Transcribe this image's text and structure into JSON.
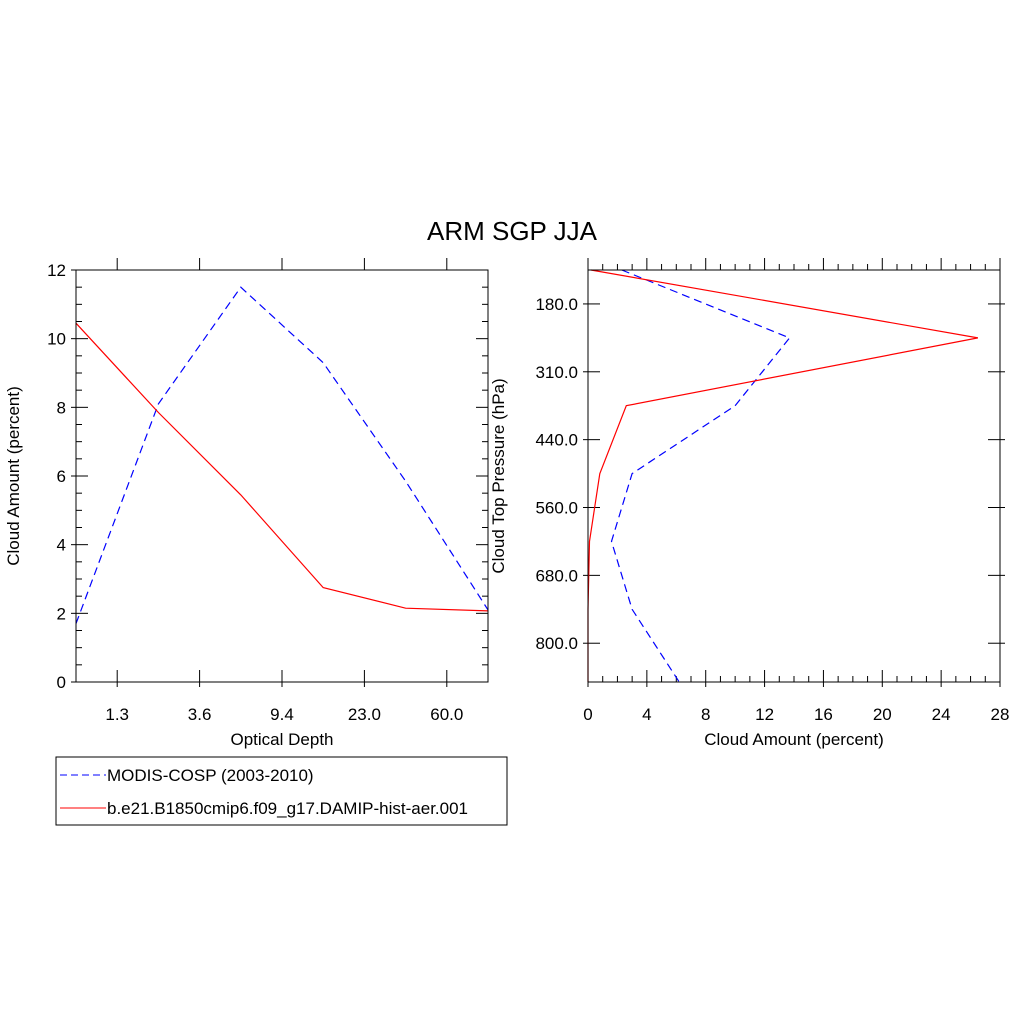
{
  "title": "ARM SGP JJA",
  "legend": {
    "placement": "bottom-left",
    "entries": [
      {
        "label": "MODIS-COSP (2003-2010)",
        "color": "#0000ff",
        "style": "dashed"
      },
      {
        "label": "b.e21.B1850cmip6.f09_g17.DAMIP-hist-aer.001",
        "color": "#ff0000",
        "style": "solid"
      }
    ]
  },
  "chart_data": [
    {
      "type": "line",
      "xlabel": "Optical Depth",
      "ylabel": "Cloud Amount (percent)",
      "xticklabels": [
        "1.3",
        "3.6",
        "9.4",
        "23.0",
        "60.0"
      ],
      "xtick_positions": [
        1,
        3,
        5,
        7,
        9
      ],
      "xlim": [
        0,
        10
      ],
      "ylim": [
        0,
        12
      ],
      "yticks": [
        0,
        2,
        4,
        6,
        8,
        10,
        12
      ],
      "x": [
        0,
        2,
        4,
        6,
        8,
        10
      ],
      "series": [
        {
          "name": "MODIS-COSP (2003-2010)",
          "color": "#0000ff",
          "style": "dashed",
          "values": [
            1.7,
            8.1,
            11.5,
            9.3,
            5.85,
            2.1
          ]
        },
        {
          "name": "b.e21.B1850cmip6.f09_g17.DAMIP-hist-aer.001",
          "color": "#ff0000",
          "style": "solid",
          "values": [
            10.45,
            7.85,
            5.45,
            2.75,
            2.15,
            2.07
          ]
        }
      ]
    },
    {
      "type": "line",
      "orientation": "horizontal",
      "xlabel": "Cloud Amount (percent)",
      "ylabel": "Cloud Top Pressure (hPa)",
      "xlim": [
        0,
        28
      ],
      "xticks": [
        0,
        4,
        8,
        12,
        16,
        20,
        24,
        28
      ],
      "ylim": [
        50,
        900
      ],
      "y_inverted": true,
      "yticklabels": [
        "180.0",
        "310.0",
        "440.0",
        "560.0",
        "680.0",
        "800.0"
      ],
      "ytick_positions": [
        120,
        260,
        400,
        540,
        680,
        820
      ],
      "pressure": [
        50,
        190,
        330,
        470,
        610,
        750,
        900
      ],
      "series": [
        {
          "name": "MODIS-COSP (2003-2010)",
          "color": "#0000ff",
          "style": "dashed",
          "values": [
            2.3,
            13.7,
            10.0,
            3.0,
            1.6,
            3.0,
            6.2
          ]
        },
        {
          "name": "b.e21.B1850cmip6.f09_g17.DAMIP-hist-aer.001",
          "color": "#ff0000",
          "style": "solid",
          "values": [
            0.2,
            26.5,
            2.6,
            0.8,
            0.1,
            0.0,
            0.0
          ]
        }
      ]
    }
  ]
}
